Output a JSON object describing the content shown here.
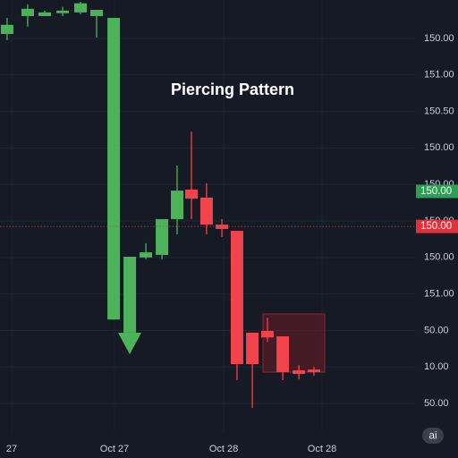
{
  "chart_data": {
    "type": "candlestick",
    "title": "Piercing Pattern",
    "badge": "ai",
    "up_color": "#4cb35a",
    "down_color": "#f0434c",
    "grid": true,
    "x": [
      0.44,
      1.72,
      2.78,
      3.89,
      5,
      6,
      7.06,
      8.06,
      9.06,
      10.06,
      11,
      11.89,
      12.83,
      13.78,
      14.72,
      15.67,
      16.61,
      17.56,
      18.56,
      19.5
    ],
    "open": [
      10.12,
      10.61,
      10.61,
      10.69,
      10.71,
      10.61,
      2.3,
      1.94,
      4.0,
      4.07,
      5.05,
      5.86,
      5.64,
      4.9,
      4.73,
      1.94,
      1.99,
      1.84,
      0.91,
      0.93
    ],
    "high": [
      10.56,
      10.93,
      10.76,
      10.86,
      11.0,
      10.78,
      10.56,
      4.02,
      4.39,
      5.05,
      6.52,
      7.45,
      6.03,
      5.05,
      4.73,
      1.94,
      2.35,
      1.84,
      1.05,
      1.0
    ],
    "low": [
      9.95,
      10.32,
      10.61,
      10.61,
      10.66,
      10.02,
      2.3,
      1.94,
      3.95,
      3.95,
      4.63,
      5.05,
      4.63,
      4.56,
      0.64,
      -0.12,
      1.69,
      0.64,
      0.66,
      0.76
    ],
    "close": [
      10.37,
      10.81,
      10.71,
      10.76,
      10.96,
      10.78,
      10.56,
      4.02,
      4.14,
      5.05,
      5.83,
      5.61,
      4.9,
      4.78,
      1.08,
      1.08,
      1.81,
      0.86,
      0.81,
      0.86
    ],
    "xlim": [
      0,
      25.8
    ],
    "xticks": [
      {
        "value": 0.72,
        "label": "27"
      },
      {
        "value": 7.11,
        "label": "Oct 27"
      },
      {
        "value": 13.89,
        "label": "Oct 28"
      },
      {
        "value": 20,
        "label": "Oct 28"
      }
    ],
    "ylim": [
      -0.83,
      11.05
    ],
    "yticks": [
      {
        "value": 10,
        "label": "150.00"
      },
      {
        "value": 9,
        "label": "151.00"
      },
      {
        "value": 8,
        "label": "150.50"
      },
      {
        "value": 7,
        "label": "150.00"
      },
      {
        "value": 6,
        "label": "150.00"
      },
      {
        "value": 5,
        "label": "150.00"
      },
      {
        "value": 4,
        "label": "150.00"
      },
      {
        "value": 3,
        "label": "151.00"
      },
      {
        "value": 2,
        "label": "50.00"
      },
      {
        "value": 1,
        "label": "10.00"
      },
      {
        "value": 0,
        "label": "50.00"
      }
    ],
    "price_tags": [
      {
        "value": 5.81,
        "label": "150.00",
        "color": "#2e9e55"
      },
      {
        "value": 4.85,
        "label": "150.00",
        "color": "#e0313a"
      }
    ]
  }
}
